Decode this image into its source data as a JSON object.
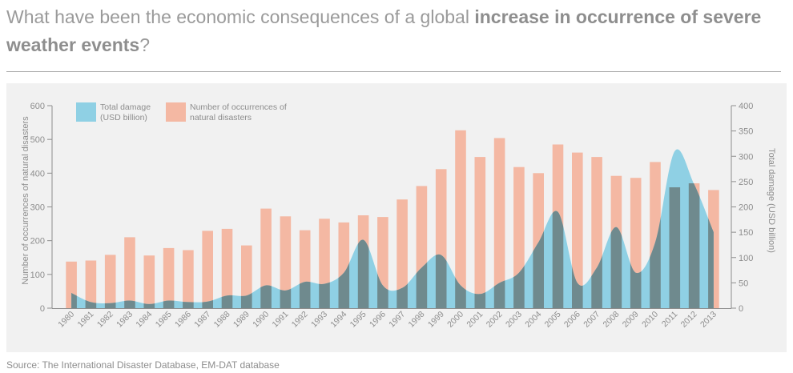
{
  "headline": {
    "part1": "What have been the economic consequences of a global ",
    "bold1": "increase in occurrence of severe weather events",
    "part2": "?"
  },
  "source": "Source: The International Disaster Database, EM-DAT database",
  "colors": {
    "bars": "#f4b8a3",
    "area": "#8fd0e4",
    "overlap": "#6f8a8e",
    "axis": "#8d8d8d",
    "panel": "#f1f1f1"
  },
  "chart_data": {
    "type": "bar",
    "categories": [
      "1980",
      "1981",
      "1982",
      "1983",
      "1984",
      "1985",
      "1986",
      "1987",
      "1988",
      "1989",
      "1990",
      "1991",
      "1992",
      "1993",
      "1994",
      "1995",
      "1996",
      "1997",
      "1998",
      "1999",
      "2000",
      "2001",
      "2002",
      "2003",
      "2004",
      "2005",
      "2006",
      "2007",
      "2008",
      "2009",
      "2010",
      "2011",
      "2012",
      "2013"
    ],
    "series": [
      {
        "name": "Number of occurrences of natural disasters",
        "chart": "bar",
        "axis": "left",
        "values": [
          138,
          141,
          158,
          210,
          156,
          178,
          172,
          229,
          235,
          186,
          295,
          272,
          231,
          265,
          254,
          275,
          270,
          322,
          362,
          412,
          527,
          448,
          504,
          418,
          400,
          485,
          461,
          448,
          392,
          386,
          433,
          358,
          370,
          350
        ]
      },
      {
        "name": "Total damage (USD billion)",
        "chart": "area",
        "axis": "right",
        "values": [
          30,
          12,
          10,
          15,
          8,
          15,
          12,
          13,
          25,
          25,
          45,
          35,
          52,
          48,
          70,
          135,
          45,
          40,
          80,
          105,
          45,
          28,
          50,
          70,
          130,
          190,
          50,
          80,
          160,
          70,
          130,
          310,
          245,
          150
        ]
      }
    ],
    "legend": [
      {
        "label": "Total damage\n(USD billion)",
        "color": "area"
      },
      {
        "label": "Number of occurrences of\nnatural disasters",
        "color": "bars"
      }
    ],
    "legend_position": "top-left",
    "ylabel_left": "Number of occurrences of natural disasters",
    "ylabel_right": "Total damage (USD billion)",
    "ylim_left": [
      0,
      600
    ],
    "ylim_right": [
      0,
      400
    ],
    "yticks_left": [
      "0",
      "100",
      "200",
      "300",
      "400",
      "500",
      "600"
    ],
    "yticks_right": [
      "0",
      "50",
      "100",
      "150",
      "200",
      "250",
      "300",
      "350",
      "400"
    ],
    "grid": false
  }
}
